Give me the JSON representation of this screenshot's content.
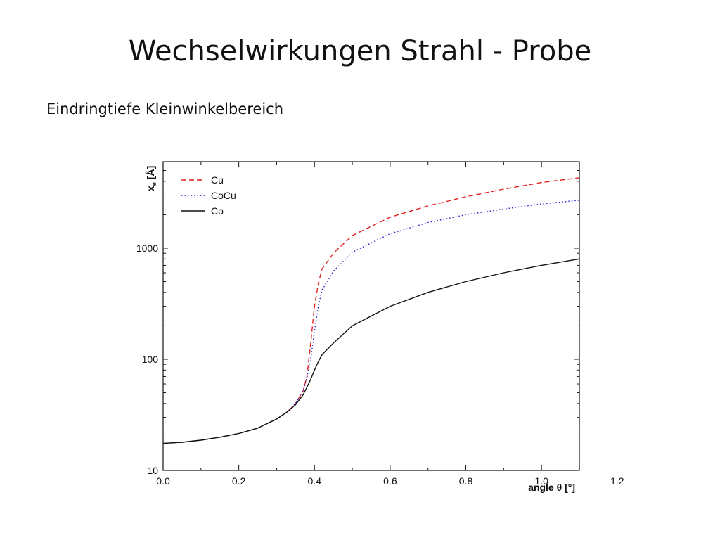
{
  "slide": {
    "title": "Wechselwirkungen Strahl - Probe",
    "subtitle": "Eindringtiefe Kleinwinkelbereich"
  },
  "chart_data": {
    "type": "line",
    "title": "",
    "xlabel": "angle θ [°]",
    "ylabel_main": "x",
    "ylabel_sub": "e",
    "ylabel_unit": "[Å]",
    "x_scale": "linear",
    "y_scale": "log",
    "xlim": [
      0.0,
      1.1
    ],
    "ylim": [
      10,
      6000
    ],
    "x_ticks": [
      "0.0",
      "0.2",
      "0.4",
      "0.6",
      "0.8",
      "1.0",
      "1.2"
    ],
    "x_tick_values": [
      0.0,
      0.2,
      0.4,
      0.6,
      0.8,
      1.0,
      1.2
    ],
    "y_ticks": [
      "10",
      "100",
      "1000"
    ],
    "y_tick_values": [
      10,
      100,
      1000
    ],
    "legend_position": "top-left",
    "grid": false,
    "x": [
      0.0,
      0.05,
      0.1,
      0.15,
      0.2,
      0.25,
      0.3,
      0.33,
      0.35,
      0.37,
      0.38,
      0.39,
      0.4,
      0.41,
      0.42,
      0.45,
      0.5,
      0.6,
      0.7,
      0.8,
      0.9,
      1.0,
      1.1
    ],
    "series": [
      {
        "name": "Cu",
        "color": "#e02020",
        "dash": "dashed",
        "values": [
          17.5,
          17.9,
          18.7,
          19.9,
          21.5,
          24,
          29,
          34,
          40,
          52,
          70,
          140,
          300,
          480,
          650,
          900,
          1300,
          1900,
          2400,
          2900,
          3400,
          3900,
          4300
        ]
      },
      {
        "name": "CoCu",
        "color": "#2020d0",
        "dash": "dotted",
        "values": [
          17.5,
          17.9,
          18.7,
          19.9,
          21.5,
          24,
          29,
          34,
          40,
          52,
          68,
          100,
          180,
          300,
          420,
          620,
          920,
          1350,
          1700,
          2000,
          2250,
          2500,
          2700
        ]
      },
      {
        "name": "Co",
        "color": "#111111",
        "dash": "solid",
        "values": [
          17.5,
          17.9,
          18.7,
          19.9,
          21.5,
          24,
          29,
          34,
          39,
          48,
          56,
          66,
          80,
          95,
          110,
          140,
          200,
          300,
          400,
          500,
          600,
          700,
          800
        ]
      }
    ]
  }
}
